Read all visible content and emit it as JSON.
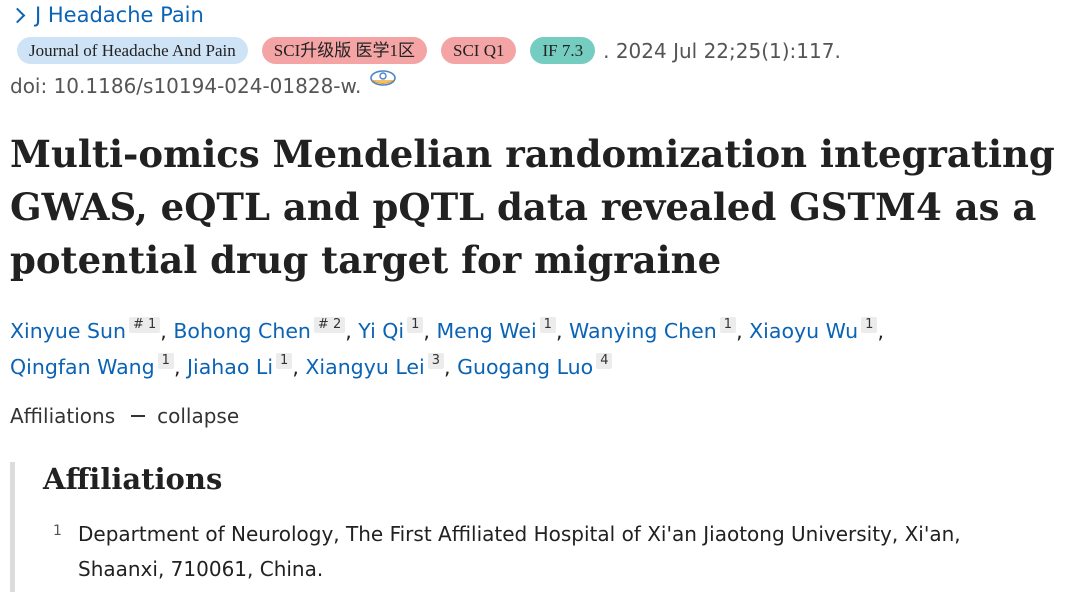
{
  "journal_link": "J Headache Pain",
  "badges": {
    "journal": "Journal of Headache And Pain",
    "sci_upgrade": "SCI升级版 医学1区",
    "sci_q": "SCI Q1",
    "impact_factor": "IF 7.3"
  },
  "citation": ". 2024 Jul 22;25(1):117.",
  "doi": "doi: 10.1186/s10194-024-01828-w.",
  "title": "Multi-omics Mendelian randomization integrating GWAS, eQTL and pQTL data revealed GSTM4 as a potential drug target for migraine",
  "authors": [
    {
      "name": "Xinyue Sun",
      "sup": "# 1"
    },
    {
      "name": "Bohong Chen",
      "sup": "# 2"
    },
    {
      "name": "Yi Qi",
      "sup": "1"
    },
    {
      "name": "Meng Wei",
      "sup": "1"
    },
    {
      "name": "Wanying Chen",
      "sup": "1"
    },
    {
      "name": "Xiaoyu Wu",
      "sup": "1"
    },
    {
      "name": "Qingfan Wang",
      "sup": "1"
    },
    {
      "name": "Jiahao Li",
      "sup": "1"
    },
    {
      "name": "Xiangyu Lei",
      "sup": "3"
    },
    {
      "name": "Guogang Luo",
      "sup": "4"
    }
  ],
  "affiliations_toggle": {
    "label": "Affiliations",
    "action": "collapse"
  },
  "affiliations": {
    "heading": "Affiliations",
    "items": [
      {
        "num": "1",
        "text": "Department of Neurology, The First Affiliated Hospital of Xi'an Jiaotong University, Xi'an, Shaanxi, 710061, China."
      }
    ]
  }
}
